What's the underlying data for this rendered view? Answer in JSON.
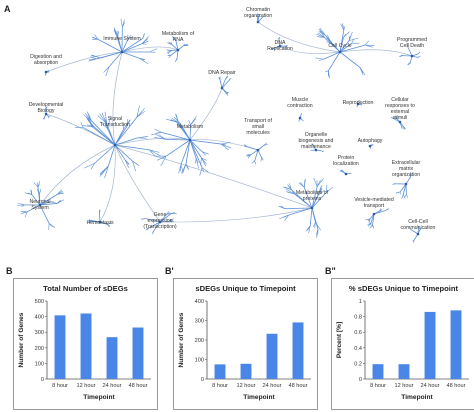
{
  "panel_a_letter": "A",
  "network_labels": [
    "Immune System",
    "Metabolism of RNA",
    "Chromatin organization",
    "Programmed Cell Death",
    "Digestion and absorption",
    "DNA Replication",
    "Cell Cycle",
    "DNA Repair",
    "Developmental Biology",
    "Signal Transduction",
    "Metabolism",
    "Transport of small molecules",
    "Muscle contraction",
    "Reproduction",
    "Cellular responses to external stimuli",
    "Organelle biogenesis and maintenance",
    "Autophagy",
    "Protein localization",
    "Extracellular matrix organization",
    "Neuronal System",
    "Hemostasis",
    "Gene expression (Transcription)",
    "Metabolism of proteins",
    "Vesicle-mediated transport",
    "Cell-Cell communication"
  ],
  "colors": {
    "accent": "#4a86e8",
    "network": "#5b8fd6",
    "edge": "#8fa6c8"
  },
  "chart_data": [
    {
      "letter": "B",
      "type": "bar",
      "title": "Total Number of sDEGs",
      "xlabel": "Timepoint",
      "ylabel": "Number of Genes",
      "categories": [
        "8 hour",
        "12 hour",
        "24 hour",
        "48 hour"
      ],
      "values": [
        408,
        420,
        268,
        330
      ],
      "ylim": [
        0,
        500
      ],
      "yticks": [
        "0",
        "100",
        "200",
        "300",
        "400",
        "500"
      ],
      "grid": false
    },
    {
      "letter": "B'",
      "type": "bar",
      "title": "sDEGs Unique to Timepoint",
      "xlabel": "Timepoint",
      "ylabel": "Number of Genes",
      "categories": [
        "8 hour",
        "12 hour",
        "24 hour",
        "48 hour"
      ],
      "values": [
        75,
        78,
        232,
        290
      ],
      "ylim": [
        0,
        400
      ],
      "yticks": [
        "0",
        "100",
        "200",
        "300",
        "400"
      ],
      "grid": false
    },
    {
      "letter": "B\"",
      "type": "bar",
      "title": "% sDEGs Unique to Timepoint",
      "xlabel": "Timepoint",
      "ylabel": "Percent [%]",
      "categories": [
        "8 hour",
        "12 hour",
        "24 hour",
        "48 hour"
      ],
      "values": [
        0.19,
        0.19,
        0.86,
        0.88
      ],
      "ylim": [
        0,
        1
      ],
      "yticks": [
        "0",
        "0.2",
        "0.4",
        "0.6",
        "0.8",
        "1"
      ],
      "grid": false
    }
  ]
}
